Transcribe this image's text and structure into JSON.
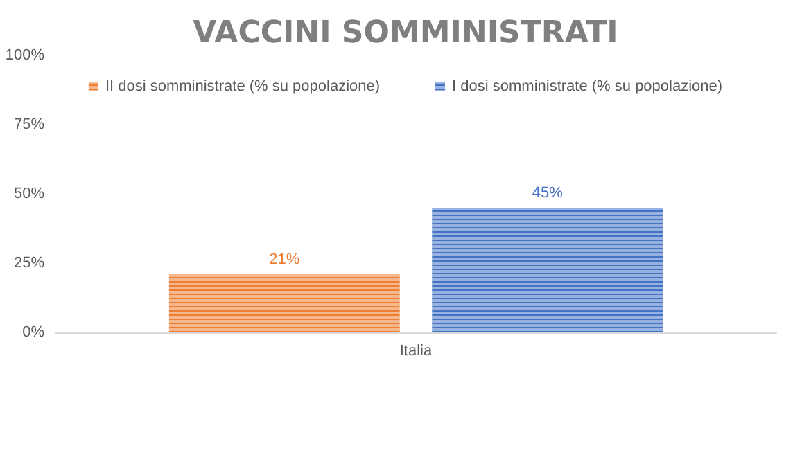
{
  "chart_data": {
    "type": "bar",
    "title": "VACCINI SOMMINISTRATI",
    "categories": [
      "Italia"
    ],
    "series": [
      {
        "name": "II dosi somministrate (% su popolazione)",
        "color": "#ed7d31",
        "values": [
          21
        ],
        "value_labels": [
          "21%"
        ]
      },
      {
        "name": "I dosi somministrate (% su popolazione)",
        "color": "#4472c4",
        "values": [
          45
        ],
        "value_labels": [
          "45%"
        ]
      }
    ],
    "ylim": [
      0,
      100
    ],
    "yticks": [
      {
        "value": 0,
        "label": "0%"
      },
      {
        "value": 25,
        "label": "25%"
      },
      {
        "value": 50,
        "label": "50%"
      },
      {
        "value": 75,
        "label": "75%"
      },
      {
        "value": 100,
        "label": "100%"
      }
    ],
    "grid": false,
    "legend": "top"
  }
}
